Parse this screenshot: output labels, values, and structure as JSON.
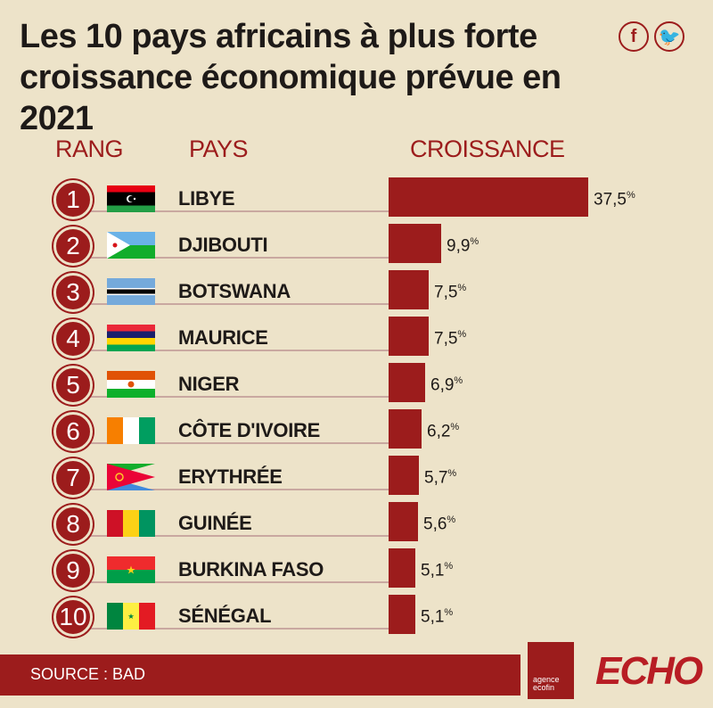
{
  "title": "Les 10 pays africains à plus forte croissance économique prévue en 2021",
  "social": {
    "facebook": "f",
    "twitter": "🐦"
  },
  "headers": {
    "rank": "RANG",
    "country": "PAYS",
    "growth": "CROISSANCE"
  },
  "chart_data": {
    "type": "bar",
    "orientation": "horizontal",
    "title": "Les 10 pays africains à plus forte croissance économique prévue en 2021",
    "value_unit": "%",
    "categories": [
      "LIBYE",
      "DJIBOUTI",
      "BOTSWANA",
      "MAURICE",
      "NIGER",
      "CÔTE D'IVOIRE",
      "ERYTHRÉE",
      "GUINÉE",
      "BURKINA FASO",
      "SÉNÉGAL"
    ],
    "values": [
      37.5,
      9.9,
      7.5,
      7.5,
      6.9,
      6.2,
      5.7,
      5.6,
      5.1,
      5.1
    ],
    "value_labels": [
      "37,5",
      "9,9",
      "7,5",
      "7,5",
      "6,9",
      "6,2",
      "5,7",
      "5,6",
      "5,1",
      "5,1"
    ],
    "ranks": [
      "1",
      "2",
      "3",
      "4",
      "5",
      "6",
      "7",
      "8",
      "9",
      "10"
    ],
    "bar_color": "#9c1c1c",
    "grid": false
  },
  "source": "SOURCE : BAD",
  "brand": {
    "ecofin": "agence ecofin",
    "echo": "ECHO"
  },
  "colors": {
    "accent": "#9c1c1c",
    "background": "#ede3c9",
    "text": "#1e1a18"
  }
}
